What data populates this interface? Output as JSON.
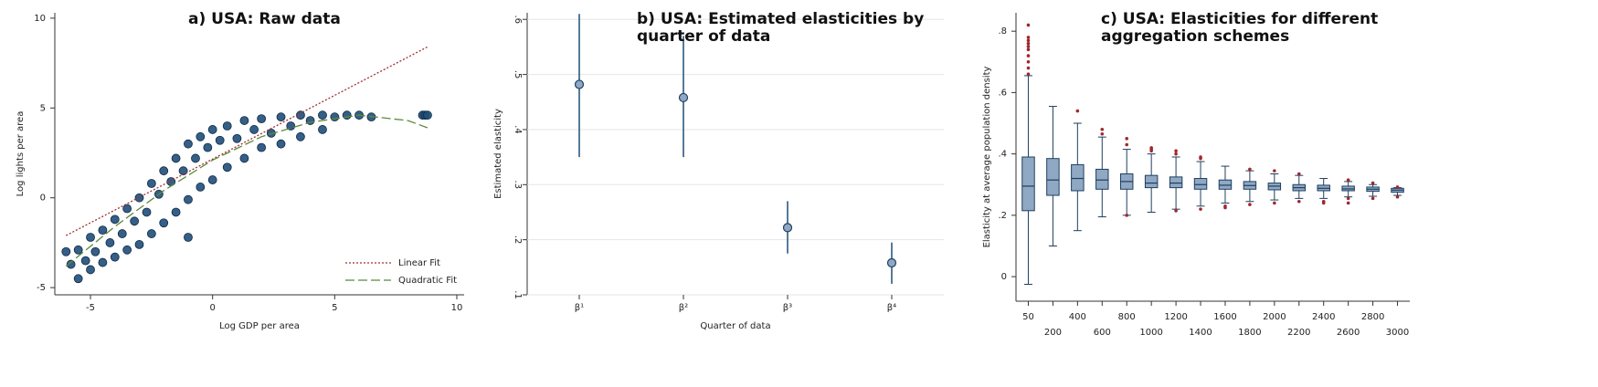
{
  "chart_data": [
    {
      "type": "scatter",
      "title": "a) USA: Raw data",
      "x_label": "Log GDP per area",
      "y_label": "Log lights per area",
      "xlim": [
        -6.46,
        10.3
      ],
      "ylim": [
        -5.4,
        10.3
      ],
      "xticks": [
        -5,
        0,
        5,
        10
      ],
      "yticks": [
        -5,
        0,
        5,
        10
      ],
      "grid": false,
      "legend": "lower right",
      "series": [
        {
          "mode": "markers",
          "color": "#1f4e79",
          "x": [
            -6,
            -5.8,
            -5.5,
            -5.5,
            -5.2,
            -5,
            -5,
            -4.8,
            -4.5,
            -4.5,
            -4.2,
            -4,
            -4,
            -3.7,
            -3.5,
            -3.5,
            -3.2,
            -3,
            -3,
            -2.7,
            -2.5,
            -2.5,
            -2.2,
            -2,
            -2,
            -1.7,
            -1.5,
            -1.5,
            -1.2,
            -1,
            -1,
            -1,
            -0.7,
            -0.5,
            -0.5,
            -0.2,
            0,
            0,
            0.3,
            0.6,
            0.6,
            1,
            1.3,
            1.3,
            1.7,
            2,
            2,
            2.4,
            2.8,
            2.8,
            3.2,
            3.6,
            3.6,
            4,
            4.5,
            4.5,
            5,
            5.5,
            6,
            6.5,
            8.6,
            8.7,
            8.8
          ],
          "values": [
            -3,
            -3.7,
            -4.5,
            -2.9,
            -3.5,
            -2.2,
            -4,
            -3,
            -1.8,
            -3.6,
            -2.5,
            -1.2,
            -3.3,
            -2,
            -0.6,
            -2.9,
            -1.3,
            0,
            -2.6,
            -0.8,
            0.8,
            -2,
            0.2,
            1.5,
            -1.4,
            0.9,
            2.2,
            -0.8,
            1.5,
            3,
            -0.1,
            -2.2,
            2.2,
            3.4,
            0.6,
            2.8,
            3.8,
            1,
            3.2,
            4,
            1.7,
            3.3,
            4.3,
            2.2,
            3.8,
            4.4,
            2.8,
            3.6,
            4.5,
            3,
            4,
            4.6,
            3.4,
            4.3,
            4.6,
            3.8,
            4.5,
            4.6,
            4.6,
            4.5,
            4.6,
            4.6,
            4.6
          ]
        },
        {
          "mode": "dotted",
          "name": "Linear Fit",
          "color": "#a03030",
          "x": [
            -6,
            8.8
          ],
          "values": [
            -2.1,
            8.4
          ]
        },
        {
          "mode": "dashed",
          "name": "Quadratic Fit",
          "color": "#5a8a3a",
          "x": [
            -6,
            -4,
            -2,
            0,
            2,
            4,
            6,
            8,
            8.8
          ],
          "values": [
            -3.8,
            -1.6,
            0.4,
            2.1,
            3.4,
            4.2,
            4.6,
            4.3,
            3.9
          ]
        }
      ]
    },
    {
      "type": "errorbar",
      "title": "b) USA: Estimated elasticities by quarter of data",
      "x_label": "Quarter of data",
      "y_label": "Estimated elasticity",
      "categories": [
        "β¹",
        "β²",
        "β³",
        "β⁴"
      ],
      "values": [
        0.482,
        0.458,
        0.222,
        0.158
      ],
      "lower": [
        0.35,
        0.35,
        0.175,
        0.12
      ],
      "upper": [
        0.61,
        0.57,
        0.27,
        0.195
      ],
      "color": "#8fa8c4",
      "ylim": [
        0.1,
        0.612
      ],
      "grid": true,
      "yticks": [
        {
          "value": 0.1,
          "label": ".1"
        },
        {
          "value": 0.2,
          "label": ".2"
        },
        {
          "value": 0.3,
          "label": ".3"
        },
        {
          "value": 0.4,
          "label": ".4"
        },
        {
          "value": 0.5,
          "label": ".5"
        },
        {
          "value": 0.6,
          "label": ".6"
        }
      ]
    },
    {
      "type": "box",
      "title": "c) USA: Elasticities for different aggregation schemes",
      "y_label": "Elasticity at average population density",
      "categories": [
        "50",
        "200",
        "400",
        "600",
        "800",
        "1000",
        "1200",
        "1400",
        "1600",
        "1800",
        "2000",
        "2200",
        "2400",
        "2600",
        "2800",
        "3000"
      ],
      "whisker_low": [
        -0.025,
        0.1,
        0.15,
        0.195,
        0.2,
        0.21,
        0.22,
        0.23,
        0.24,
        0.245,
        0.25,
        0.255,
        0.255,
        0.26,
        0.262,
        0.265
      ],
      "q1": [
        0.215,
        0.265,
        0.28,
        0.285,
        0.285,
        0.29,
        0.29,
        0.285,
        0.285,
        0.285,
        0.283,
        0.28,
        0.28,
        0.28,
        0.278,
        0.275
      ],
      "median": [
        0.295,
        0.315,
        0.32,
        0.315,
        0.31,
        0.305,
        0.305,
        0.3,
        0.298,
        0.297,
        0.295,
        0.29,
        0.288,
        0.286,
        0.285,
        0.282
      ],
      "q3": [
        0.39,
        0.385,
        0.365,
        0.35,
        0.335,
        0.33,
        0.325,
        0.32,
        0.315,
        0.31,
        0.305,
        0.3,
        0.298,
        0.295,
        0.292,
        0.288
      ],
      "whisker_high": [
        0.655,
        0.555,
        0.5,
        0.455,
        0.415,
        0.4,
        0.39,
        0.375,
        0.36,
        0.345,
        0.335,
        0.33,
        0.32,
        0.31,
        0.3,
        0.29
      ],
      "outliers": [
        [
          0.66,
          0.68,
          0.7,
          0.72,
          0.74,
          0.75,
          0.76,
          0.77,
          0.78,
          0.82
        ],
        [],
        [
          0.54
        ],
        [
          0.465,
          0.48
        ],
        [
          0.2,
          0.43,
          0.45
        ],
        [
          0.41,
          0.415,
          0.42
        ],
        [
          0.215,
          0.4,
          0.41
        ],
        [
          0.22,
          0.385,
          0.39
        ],
        [
          0.225,
          0.23
        ],
        [
          0.235,
          0.35
        ],
        [
          0.24,
          0.345
        ],
        [
          0.245,
          0.335
        ],
        [
          0.24,
          0.245
        ],
        [
          0.24,
          0.255,
          0.315
        ],
        [
          0.255,
          0.305
        ],
        [
          0.26,
          0.292
        ]
      ],
      "color": "#8fa8c4",
      "outlier_color": "#a0282e",
      "ylim": [
        -0.08,
        0.86
      ],
      "grid": false,
      "yticks": [
        0,
        {
          "value": 0.2,
          "label": ".2"
        },
        {
          "value": 0.4,
          "label": ".4"
        },
        {
          "value": 0.6,
          "label": ".6"
        },
        {
          "value": 0.8,
          "label": ".8"
        }
      ]
    }
  ]
}
